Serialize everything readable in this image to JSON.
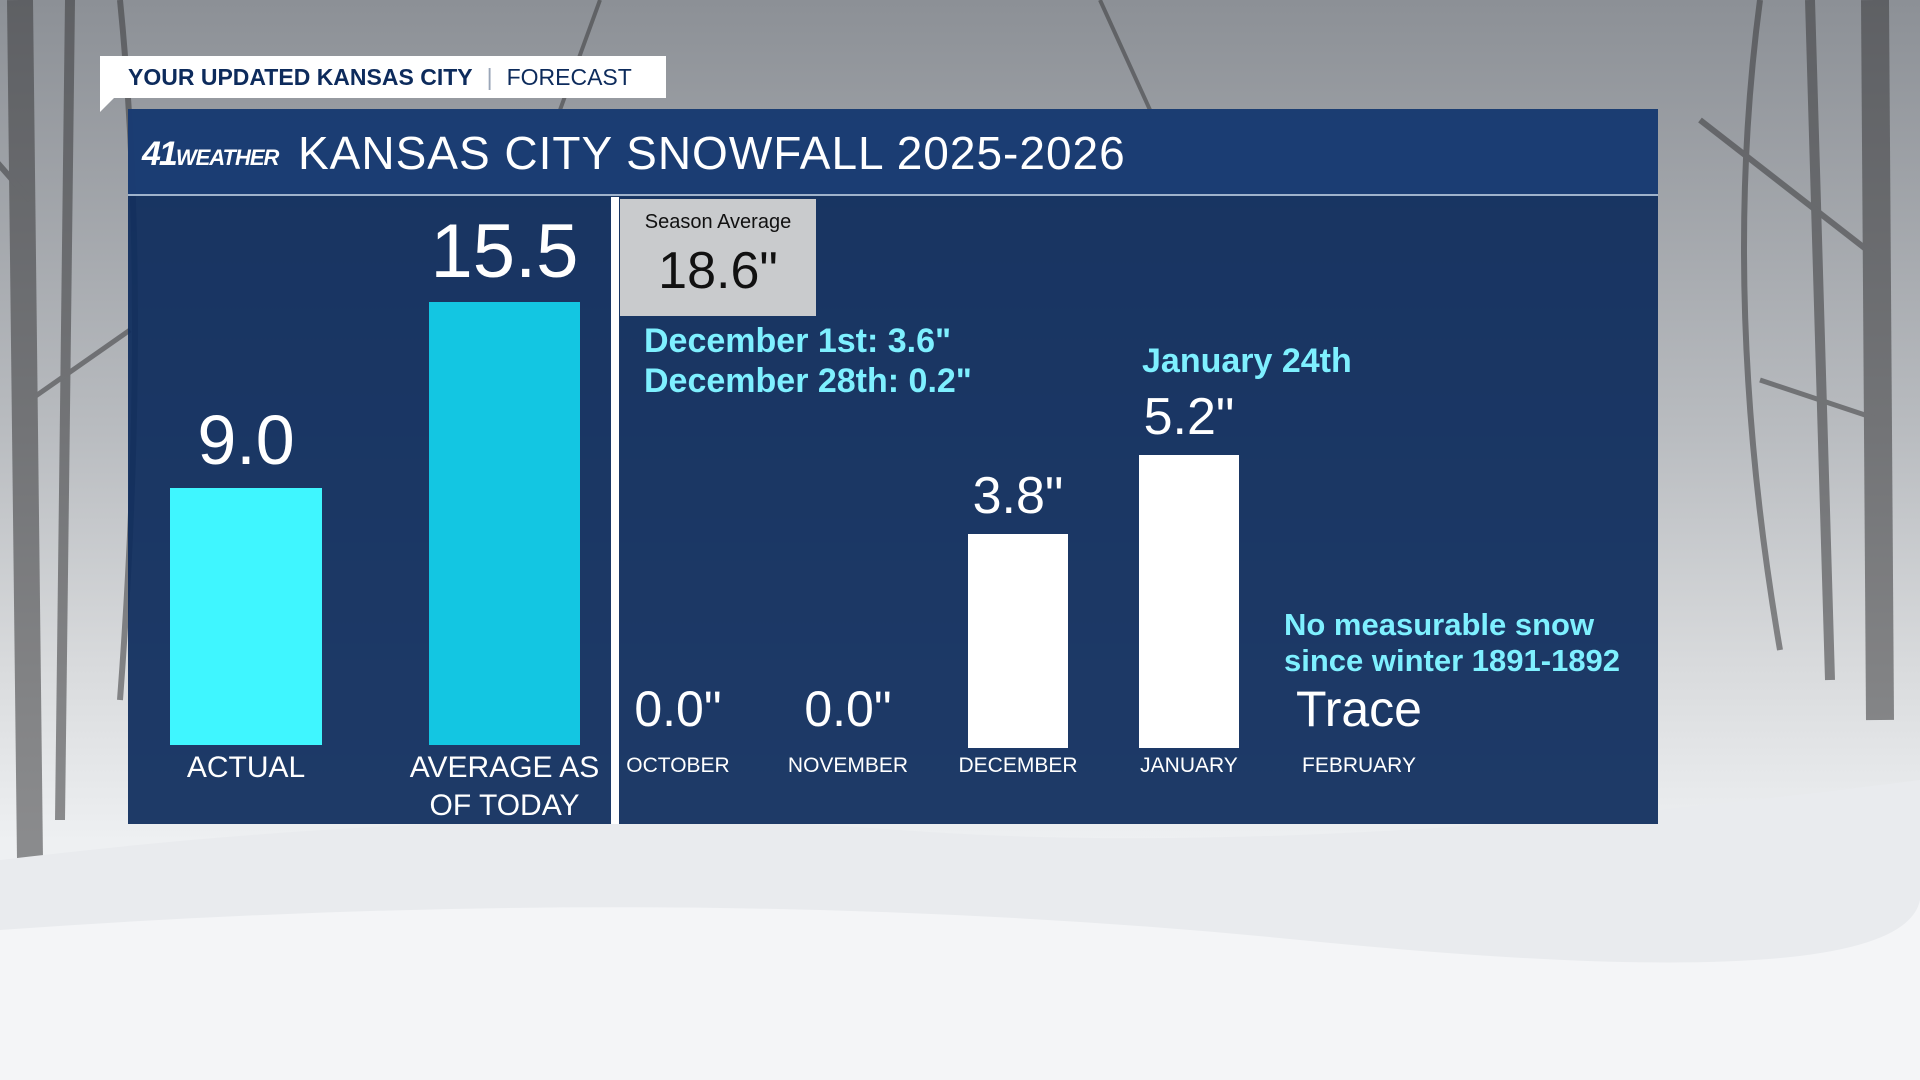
{
  "tag": {
    "left": "YOUR UPDATED KANSAS CITY",
    "right": "FORECAST"
  },
  "logo": {
    "number": "41",
    "word": "WEATHER"
  },
  "title": "KANSAS CITY SNOWFALL 2025-2026",
  "season_average": {
    "label": "Season Average",
    "value": "18.6\""
  },
  "colors": {
    "actual": "#3ff6ff",
    "average": "#13c6e2",
    "month": "#ffffff",
    "panel": "#0e2c5c",
    "note": "#7ef0ff"
  },
  "chart_data": [
    {
      "type": "bar",
      "categories": [
        "ACTUAL",
        "AVERAGE AS OF TODAY"
      ],
      "values": [
        9.0,
        15.5
      ],
      "value_labels": [
        "9.0",
        "15.5"
      ]
    },
    {
      "type": "bar",
      "categories": [
        "OCTOBER",
        "NOVEMBER",
        "DECEMBER",
        "JANUARY",
        "FEBRUARY"
      ],
      "values": [
        0.0,
        0.0,
        3.8,
        5.2,
        0
      ],
      "value_labels": [
        "0.0\"",
        "0.0\"",
        "3.8\"",
        "5.2\"",
        "Trace"
      ]
    }
  ],
  "annotations": {
    "december": [
      "December 1st: 3.6\"",
      "December 28th: 0.2\""
    ],
    "january": "January 24th",
    "february": [
      "No measurable snow",
      "since winter 1891-1892"
    ]
  }
}
